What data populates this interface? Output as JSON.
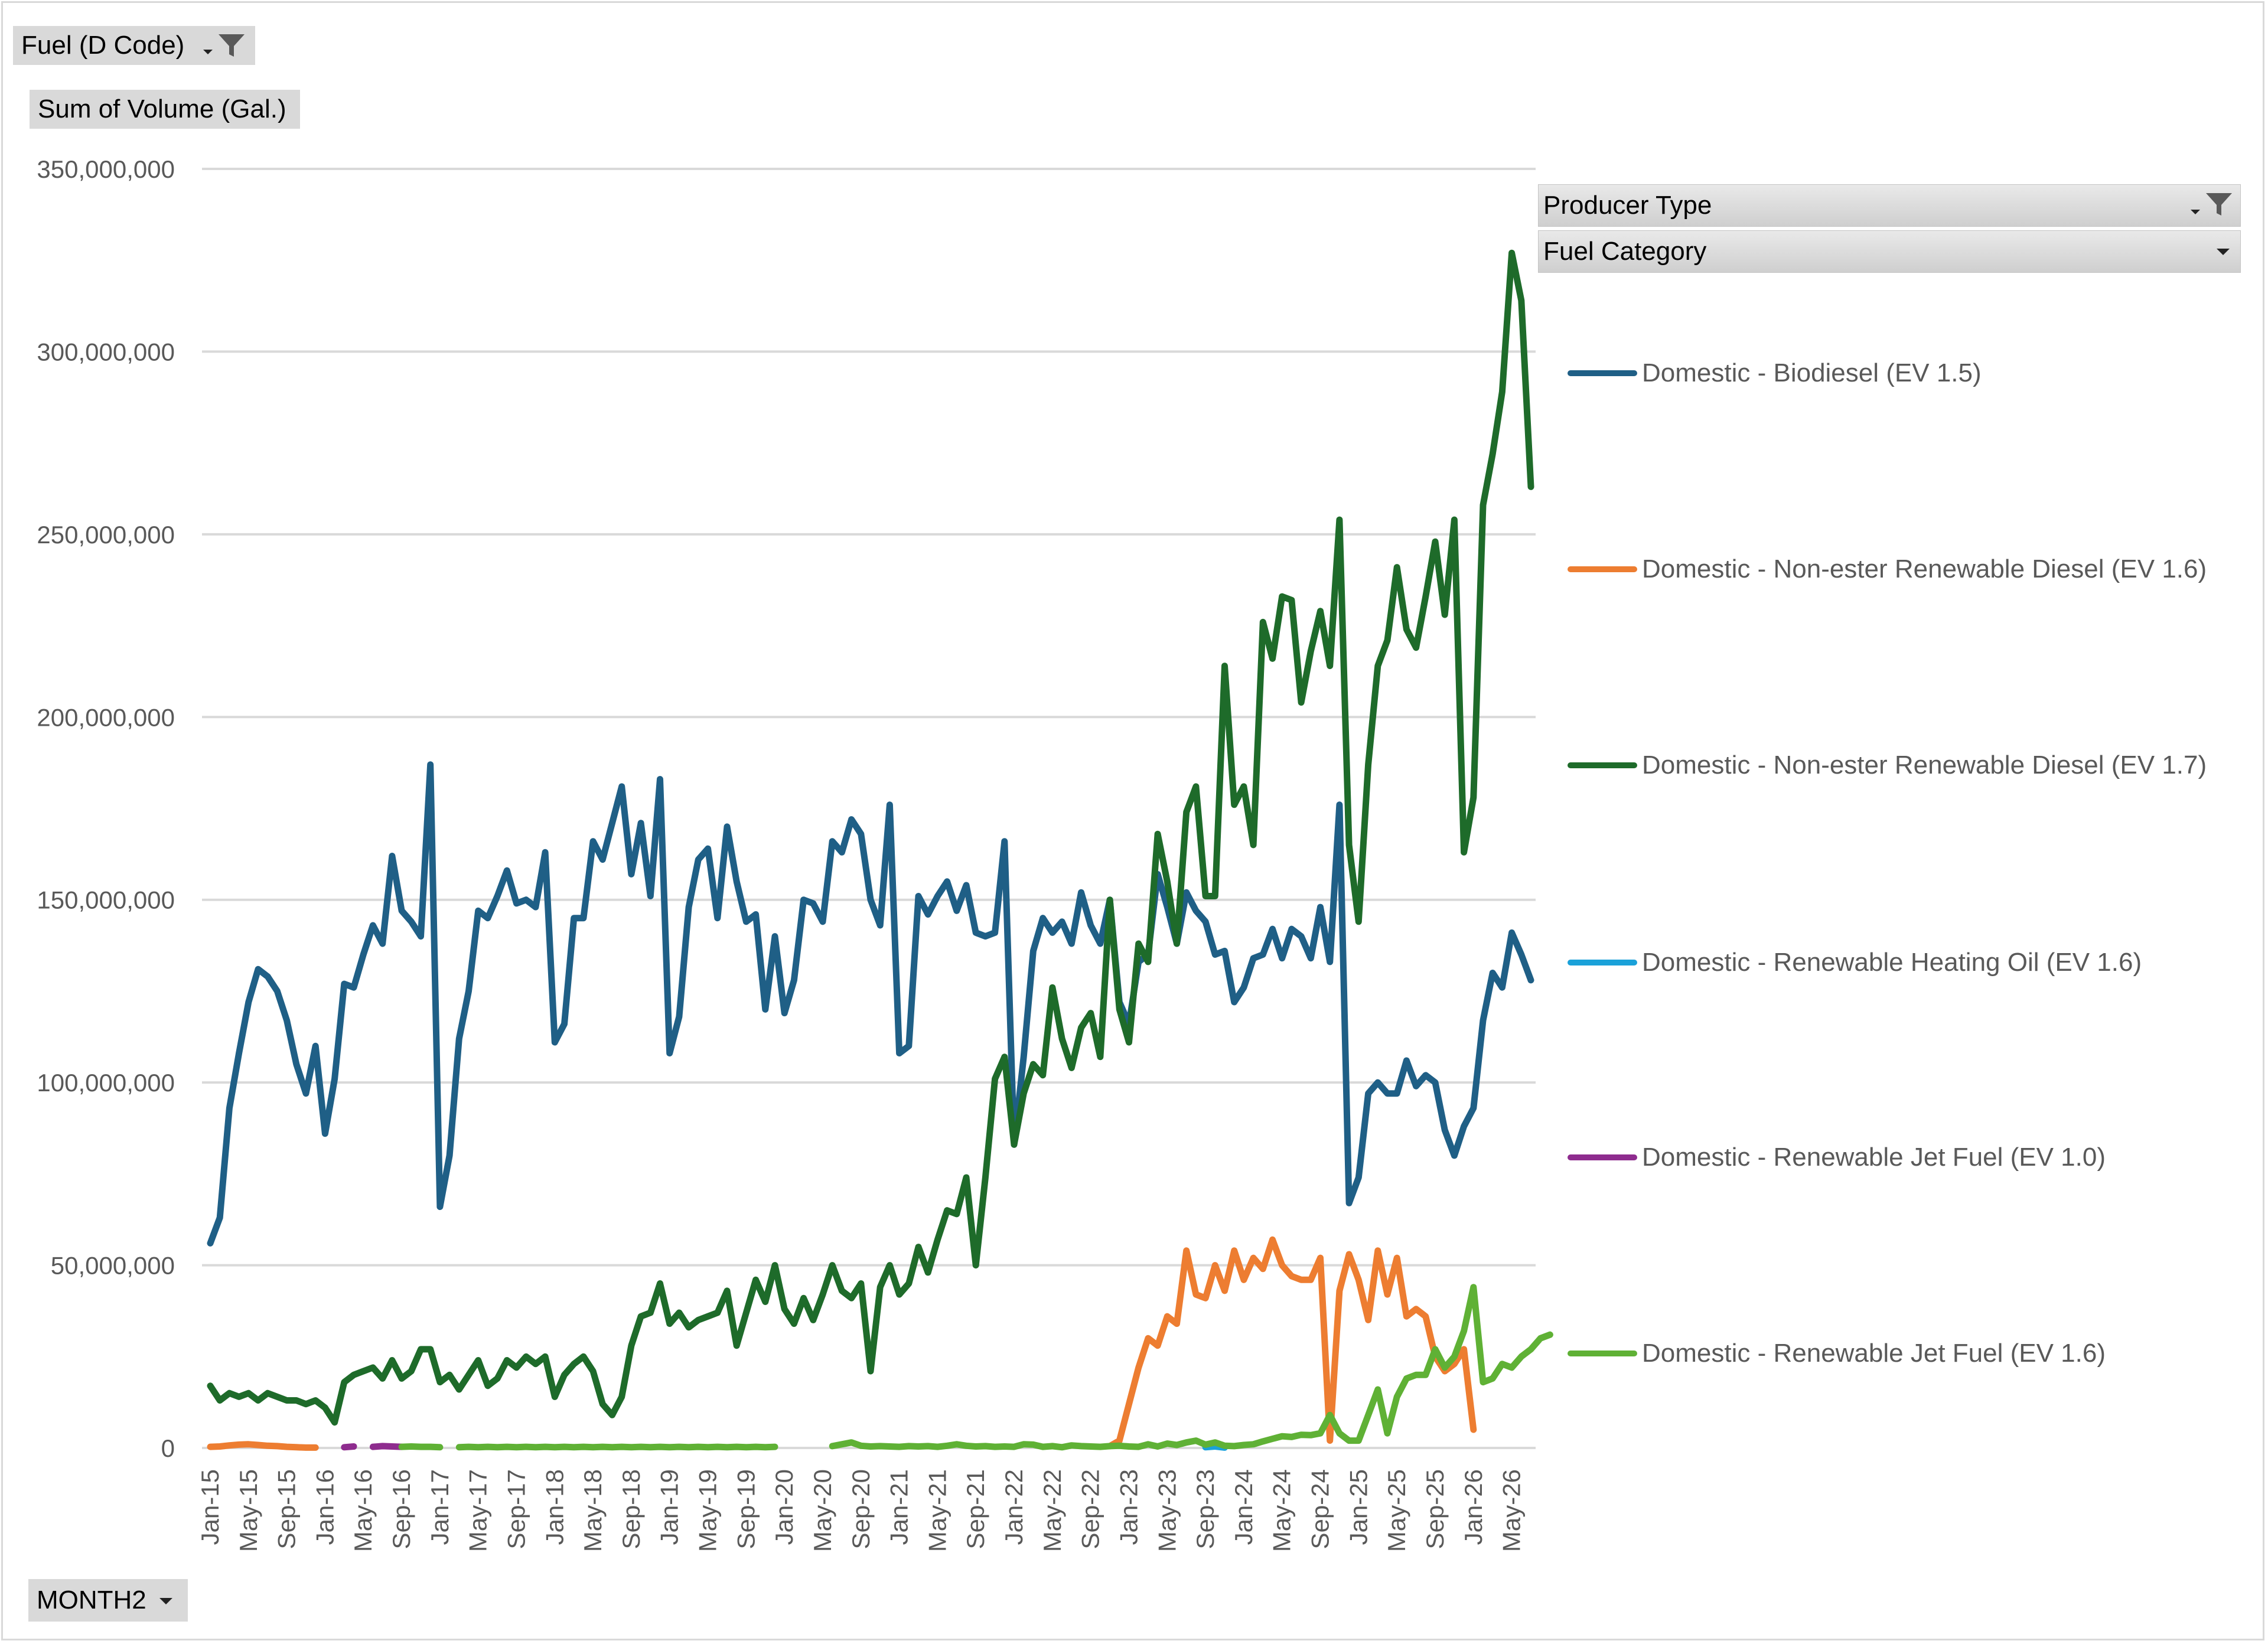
{
  "filters": {
    "report_filter": "Fuel (D Code)",
    "values_field": "Sum of Volume (Gal.)",
    "axis_field": "MONTH2",
    "legend_field_1": "Producer Type",
    "legend_field_2": "Fuel Category"
  },
  "icons": {
    "filter": "funnel-filter-icon",
    "dropdown": "chevron-down-icon"
  },
  "chart_data": {
    "type": "line",
    "title": "",
    "xlabel": "",
    "ylabel": "",
    "ylim": [
      0,
      350000000
    ],
    "yticks": [
      0,
      50000000,
      100000000,
      150000000,
      200000000,
      250000000,
      300000000,
      350000000
    ],
    "ytick_labels": [
      "0",
      "50,000,000",
      "100,000,000",
      "150,000,000",
      "200,000,000",
      "250,000,000",
      "300,000,000",
      "350,000,000"
    ],
    "grid": true,
    "legend_position": "right",
    "x_start": "Jan-15",
    "x_tick_labels": [
      "Jan-15",
      "May-15",
      "Sep-15",
      "Jan-16",
      "May-16",
      "Sep-16",
      "Jan-17",
      "May-17",
      "Sep-17",
      "Jan-18",
      "May-18",
      "Sep-18",
      "Jan-19",
      "May-19",
      "Sep-19",
      "Jan-20",
      "May-20",
      "Sep-20",
      "Jan-21",
      "May-21",
      "Sep-21",
      "Jan-22",
      "May-22",
      "Sep-22",
      "Jan-23",
      "May-23",
      "Sep-23",
      "Jan-24",
      "May-24",
      "Sep-24",
      "Jan-25",
      "May-25",
      "Sep-25",
      "Jan-26",
      "May-26"
    ],
    "series": [
      {
        "name": "Domestic - Biodiesel (EV 1.5)",
        "color": "#1f5f86",
        "values": [
          56,
          63,
          93,
          108,
          122,
          131,
          129,
          125,
          117,
          105,
          97,
          110,
          86,
          101,
          127,
          126,
          135,
          143,
          138,
          162,
          147,
          144,
          140,
          187,
          66,
          80,
          112,
          125,
          147,
          145,
          151,
          158,
          149,
          150,
          148,
          163,
          111,
          116,
          145,
          145,
          166,
          161,
          171,
          181,
          157,
          171,
          151,
          183,
          108,
          118,
          148,
          161,
          164,
          145,
          170,
          155,
          144,
          146,
          120,
          140,
          119,
          128,
          150,
          149,
          144,
          166,
          163,
          172,
          168,
          150,
          143,
          176,
          108,
          110,
          151,
          146,
          151,
          155,
          147,
          154,
          141,
          140,
          141,
          166,
          83,
          107,
          136,
          145,
          141,
          144,
          138,
          152,
          143,
          138,
          150,
          122,
          116,
          133,
          135,
          157,
          148,
          138,
          152,
          147,
          144,
          135,
          136,
          122,
          126,
          134,
          135,
          142,
          134,
          142,
          140,
          134,
          148,
          133,
          176,
          67,
          74,
          97,
          100,
          97,
          97,
          106,
          99,
          102,
          100,
          87,
          80,
          88,
          93,
          117,
          130,
          126,
          141,
          135,
          128
        ]
      },
      {
        "name": "Domestic - Non-ester Renewable Diesel (EV 1.6)",
        "color": "#ed7d31",
        "values": [
          0.3,
          0.4,
          0.7,
          0.9,
          1,
          0.8,
          0.6,
          0.5,
          0.3,
          0.2,
          0.1,
          0.1,
          null,
          null,
          null,
          null,
          null,
          null,
          null,
          null,
          null,
          null,
          null,
          null,
          null,
          null,
          null,
          null,
          null,
          null,
          null,
          null,
          null,
          null,
          null,
          null,
          null,
          null,
          null,
          null,
          null,
          null,
          null,
          null,
          null,
          null,
          null,
          null,
          null,
          null,
          null,
          null,
          null,
          null,
          null,
          null,
          null,
          null,
          null,
          null,
          null,
          null,
          null,
          null,
          null,
          null,
          null,
          null,
          null,
          null,
          null,
          null,
          null,
          null,
          null,
          null,
          null,
          null,
          null,
          null,
          null,
          null,
          null,
          null,
          null,
          null,
          null,
          null,
          null,
          null,
          null,
          null,
          null,
          null,
          0.5,
          2,
          12,
          22,
          30,
          28,
          36,
          34,
          54,
          42,
          41,
          50,
          43,
          54,
          46,
          52,
          49,
          57,
          50,
          47,
          46,
          46,
          52,
          2,
          43,
          53,
          46,
          35,
          54,
          42,
          52,
          36,
          38,
          36,
          25,
          21,
          23,
          27,
          5,
          null,
          null,
          null,
          null,
          null,
          null,
          null,
          null,
          null,
          null,
          null,
          null
        ]
      },
      {
        "name": "Domestic - Non-ester Renewable Diesel (EV 1.7)",
        "color": "#1e6b2a",
        "values": [
          17,
          13,
          15,
          14,
          15,
          13,
          15,
          14,
          13,
          13,
          12,
          13,
          11,
          7,
          18,
          20,
          21,
          22,
          19,
          24,
          19,
          21,
          27,
          27,
          18,
          20,
          16,
          20,
          24,
          17,
          19,
          24,
          22,
          25,
          23,
          25,
          14,
          20,
          23,
          25,
          21,
          12,
          9,
          14,
          28,
          36,
          37,
          45,
          34,
          37,
          33,
          35,
          36,
          37,
          43,
          28,
          37,
          46,
          40,
          50,
          38,
          34,
          41,
          35,
          42,
          50,
          43,
          41,
          45,
          21,
          44,
          50,
          42,
          45,
          55,
          48,
          57,
          65,
          64,
          74,
          50,
          74,
          101,
          107,
          83,
          97,
          105,
          102,
          126,
          112,
          104,
          115,
          119,
          107,
          150,
          120,
          111,
          138,
          133,
          168,
          155,
          138,
          174,
          181,
          151,
          151,
          214,
          176,
          181,
          165,
          226,
          216,
          233,
          232,
          204,
          218,
          229,
          214,
          254,
          165,
          144,
          187,
          214,
          221,
          241,
          224,
          219,
          233,
          248,
          228,
          254,
          163,
          178,
          258,
          272,
          289,
          327,
          314,
          263
        ]
      },
      {
        "name": "Domestic - Renewable Heating Oil (EV 1.6)",
        "color": "#1aa1d9",
        "values": [
          null,
          null,
          null,
          null,
          null,
          null,
          null,
          null,
          null,
          null,
          null,
          null,
          null,
          null,
          null,
          null,
          null,
          null,
          null,
          null,
          null,
          null,
          null,
          null,
          null,
          null,
          null,
          null,
          null,
          null,
          null,
          null,
          null,
          null,
          null,
          null,
          null,
          null,
          null,
          null,
          null,
          null,
          null,
          null,
          null,
          null,
          null,
          null,
          null,
          null,
          null,
          null,
          null,
          null,
          null,
          null,
          null,
          null,
          null,
          null,
          null,
          null,
          null,
          null,
          null,
          null,
          null,
          null,
          null,
          null,
          null,
          null,
          null,
          null,
          null,
          null,
          null,
          null,
          null,
          null,
          null,
          null,
          null,
          null,
          null,
          null,
          null,
          null,
          null,
          null,
          null,
          null,
          null,
          null,
          null,
          null,
          null,
          null,
          null,
          null,
          null,
          null,
          null,
          null,
          0.2,
          0.4,
          0.1,
          null,
          null,
          null,
          null,
          null,
          null,
          null,
          null,
          null,
          null,
          null,
          null,
          null,
          null,
          null,
          null,
          null,
          null,
          null,
          null,
          null,
          null,
          null,
          null,
          null,
          null,
          null,
          null,
          null,
          null,
          null,
          null
        ]
      },
      {
        "name": "Domestic - Renewable Jet Fuel (EV 1.0)",
        "color": "#8e2c8e",
        "values": [
          null,
          null,
          null,
          null,
          null,
          null,
          null,
          null,
          null,
          null,
          null,
          null,
          null,
          null,
          0.2,
          0.4,
          null,
          0.3,
          0.5,
          0.4,
          0.3,
          null,
          null,
          null,
          null,
          null,
          null,
          null,
          null,
          null,
          null,
          null,
          null,
          null,
          null,
          null,
          null,
          null,
          null,
          null,
          null,
          null,
          null,
          null,
          null,
          null,
          null,
          null,
          null,
          null,
          null,
          null,
          null,
          null,
          null,
          null,
          null,
          null,
          null,
          null,
          null,
          null,
          null,
          null,
          null,
          null,
          null,
          null,
          null,
          null,
          null,
          null,
          null,
          null,
          null,
          null,
          null,
          null,
          null,
          null,
          null,
          null,
          null,
          null,
          null,
          null,
          null,
          null,
          null,
          null,
          null,
          null,
          null,
          null,
          null,
          null,
          null,
          null,
          null,
          null,
          null,
          null,
          null,
          null,
          null,
          null,
          null,
          null,
          null,
          null,
          null,
          null,
          null,
          null,
          null,
          null,
          null,
          null,
          null,
          null,
          null,
          null,
          null,
          null,
          null,
          null,
          null,
          null,
          null,
          null,
          null,
          null,
          null,
          null,
          null,
          null,
          null,
          null,
          null
        ]
      },
      {
        "name": "Domestic - Renewable Jet Fuel (EV 1.6)",
        "color": "#5fb135",
        "values": [
          null,
          null,
          null,
          null,
          null,
          null,
          null,
          null,
          null,
          null,
          null,
          null,
          null,
          null,
          null,
          null,
          null,
          null,
          null,
          null,
          0.3,
          0.4,
          0.3,
          0.3,
          0.2,
          null,
          0.2,
          0.3,
          0.2,
          0.3,
          0.2,
          0.3,
          0.2,
          0.3,
          0.2,
          0.3,
          0.2,
          0.3,
          0.2,
          0.3,
          0.2,
          0.3,
          0.2,
          0.3,
          0.2,
          0.3,
          0.2,
          0.3,
          0.2,
          0.3,
          0.2,
          0.3,
          0.2,
          0.3,
          0.2,
          0.3,
          0.2,
          0.3,
          0.2,
          0.3,
          null,
          null,
          null,
          null,
          null,
          0.5,
          1,
          1.5,
          0.6,
          0.4,
          0.5,
          0.4,
          0.3,
          0.5,
          0.4,
          0.5,
          0.3,
          0.6,
          1,
          0.6,
          0.4,
          0.5,
          0.3,
          0.4,
          0.3,
          1,
          0.9,
          0.3,
          0.5,
          0.2,
          0.7,
          0.5,
          0.4,
          0.3,
          0.5,
          0.6,
          0.4,
          0.3,
          1,
          0.4,
          1.2,
          0.8,
          1.5,
          2,
          0.9,
          1.5,
          0.6,
          0.5,
          0.8,
          1,
          1.8,
          2.5,
          3.2,
          3,
          3.6,
          3.5,
          4,
          9,
          4,
          2,
          2,
          9,
          16,
          4,
          14,
          19,
          20,
          20,
          27,
          22,
          25,
          32,
          44,
          18,
          19,
          23,
          22,
          25,
          27,
          30,
          31
        ]
      }
    ]
  }
}
